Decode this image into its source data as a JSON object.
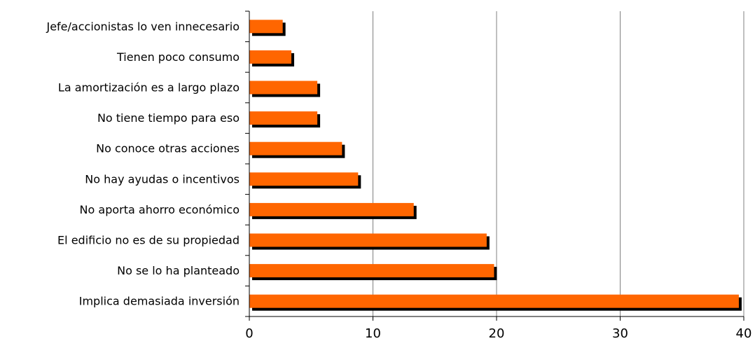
{
  "chart_data": {
    "type": "bar",
    "orientation": "horizontal",
    "categories": [
      "Jefe/accionistas lo ven innecesario",
      "Tienen poco consumo",
      "La amortización es a largo plazo",
      "No tiene tiempo para eso",
      "No conoce otras acciones",
      "No hay ayudas o incentivos",
      "No aporta ahorro económico",
      "El edificio no es de su propiedad",
      "No se lo ha planteado",
      "Implica demasiada inversión"
    ],
    "values": [
      2.7,
      3.4,
      5.5,
      5.5,
      7.5,
      8.8,
      13.3,
      19.2,
      19.8,
      39.6
    ],
    "xlim": [
      0,
      40
    ],
    "xticks": [
      0,
      10,
      20,
      30,
      40
    ],
    "grid": true,
    "bar_color": "#ff6600",
    "shadow_color": "#000000",
    "gridline_color": "#808080"
  }
}
